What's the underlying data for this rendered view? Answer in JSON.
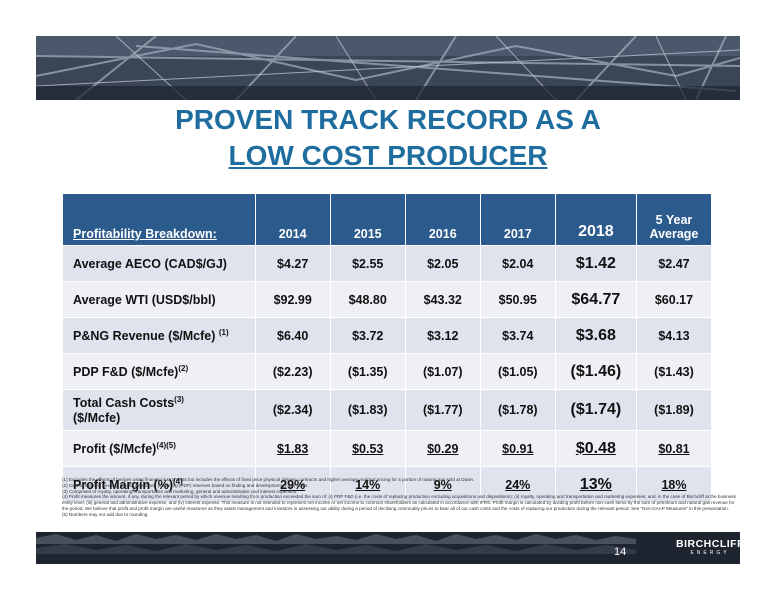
{
  "title_line1": "PROVEN TRACK RECORD AS A",
  "title_line2": "LOW COST PRODUCER",
  "table": {
    "header": [
      "Profitability Breakdown:",
      "2014",
      "2015",
      "2016",
      "2017",
      "2018",
      "5 Year Average"
    ],
    "rows": [
      {
        "label": "Average AECO (CAD$/GJ)",
        "sup": "",
        "values": [
          "$4.27",
          "$2.55",
          "$2.05",
          "$2.04",
          "$1.42",
          "$2.47"
        ]
      },
      {
        "label": "Average WTI (USD$/bbl)",
        "sup": "",
        "values": [
          "$92.99",
          "$48.80",
          "$43.32",
          "$50.95",
          "$64.77",
          "$60.17"
        ]
      },
      {
        "label": "P&NG Revenue ($/Mcfe)",
        "sup": "(1)",
        "values": [
          "$6.40",
          "$3.72",
          "$3.12",
          "$3.74",
          "$3.68",
          "$4.13"
        ]
      },
      {
        "label": "PDP F&D ($/Mcfe)",
        "sup": "(2)",
        "values": [
          "($2.23)",
          "($1.35)",
          "($1.07)",
          "($1.05)",
          "($1.46)",
          "($1.43)"
        ]
      },
      {
        "label": "Total Cash Costs",
        "label2": "($/Mcfe)",
        "sup": "(3)",
        "values": [
          "($2.34)",
          "($1.83)",
          "($1.77)",
          "($1.78)",
          "($1.74)",
          "($1.89)"
        ]
      },
      {
        "label": "Profit ($/Mcfe)",
        "sup": "(4)(5)",
        "values": [
          "$1.83",
          "$0.53",
          "$0.29",
          "$0.91",
          "$0.48",
          "$0.81"
        ]
      },
      {
        "label": "Profit Margin (%)",
        "sup": "(4)",
        "values": [
          "29%",
          "14%",
          "9%",
          "24%",
          "13%",
          "18%"
        ]
      }
    ]
  },
  "footnotes": [
    "(1) Excludes the effects of hedges using financial instruments but includes the effects of fixed price physical delivery contracts and higher average realized pricing for a portion of natural gas sold at Dawn.",
    "(2) Cost to find and develop proved developed producing (PDP) reserves based on finding and development (F&D) costs.",
    "(3) Comprised of royalty, operating, transportation and marketing, general and administrative and interest expenses.",
    "(4) Profit measures the amount, if any, during the relevant period by which revenue resulting from production exceeded the sum of: (i) PDP F&D (i.e. the costs of replacing production excluding acquisitions and dispositions); (ii) royalty, operating and transportation and marketing expenses; and, in the case of Birchcliff at the business entity level, (iii) general and administrative expense, and (iv) interest expense. This measure is not intended to represent net income or net income to common shareholders as calculated in accordance with IFRS. Profit margin is calculated by dividing profit before non-cash items by the sum of petroleum and natural gas revenue for the period. We believe that profit and profit margin are useful measures as they assist management and investors in assessing our ability during a period of declining commodity prices to bear all of our cash costs and the costs of replacing our production during the relevant period. See \"Non-GAAP Measures\" in this presentation.",
    "(5) Numbers may not add due to rounding."
  ],
  "page_number": "14",
  "logo": {
    "line1": "BIRCHCLIFF",
    "line2": "ENERGY"
  }
}
